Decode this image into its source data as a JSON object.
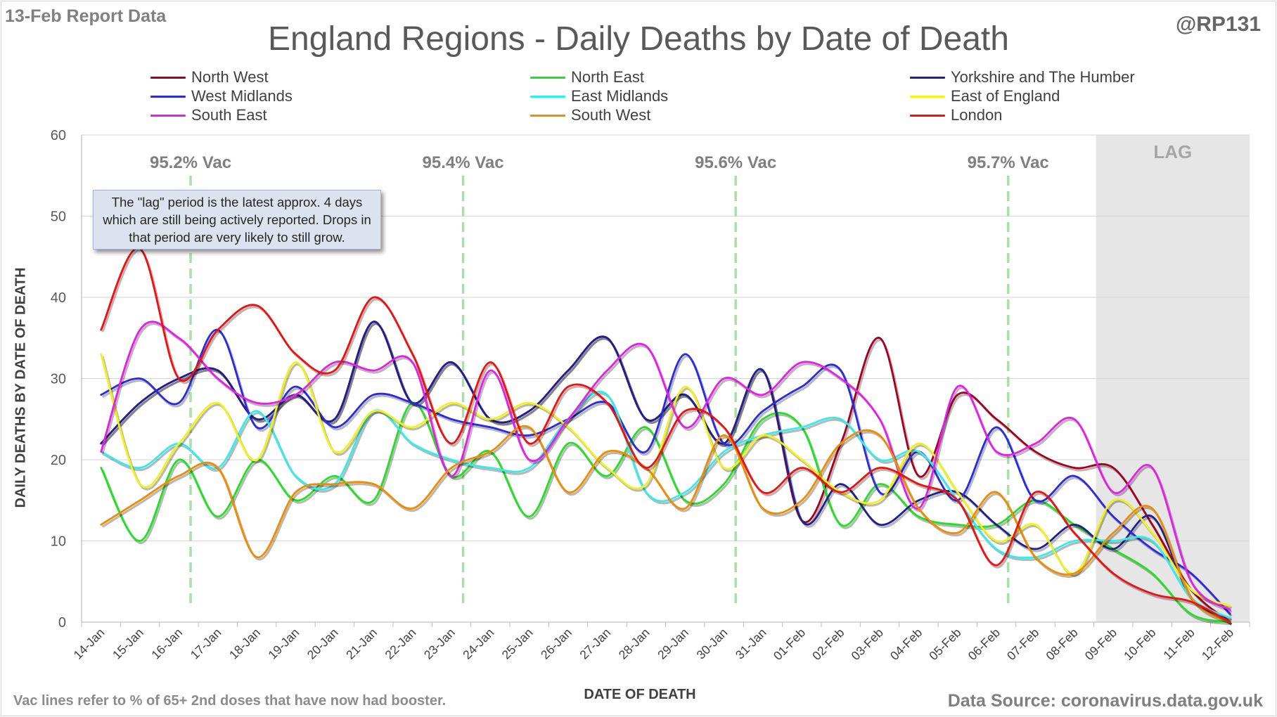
{
  "header": {
    "report_label": "13-Feb Report Data",
    "handle": "@RP131"
  },
  "footer": {
    "note": "Vac lines refer to % of 65+ 2nd doses that have now had booster.",
    "source": "Data Source: coronavirus.data.gov.uk"
  },
  "annotation": {
    "lag_note": "The \"lag\" period is the latest approx. 4 days which are still being actively reported. Drops in that period are very likely to still grow."
  },
  "colors": {
    "gridline": "#d9d9d9",
    "axis": "#bfbfbf",
    "vac_line": "#a9e0a9",
    "lag_band": "#e6e6e6"
  },
  "chart_data": {
    "type": "line",
    "title": "England Regions - Daily Deaths by Date of Death",
    "xlabel": "DATE OF DEATH",
    "ylabel": "DAILY DEATHS BY DATE OF DEATH",
    "ylim": [
      0,
      60
    ],
    "yticks": [
      0,
      10,
      20,
      30,
      40,
      50,
      60
    ],
    "grid": true,
    "legend_position": "top",
    "smoothed": true,
    "x": [
      "14-Jan",
      "15-Jan",
      "16-Jan",
      "17-Jan",
      "18-Jan",
      "19-Jan",
      "20-Jan",
      "21-Jan",
      "22-Jan",
      "23-Jan",
      "24-Jan",
      "25-Jan",
      "26-Jan",
      "27-Jan",
      "28-Jan",
      "29-Jan",
      "30-Jan",
      "31-Jan",
      "01-Feb",
      "02-Feb",
      "03-Feb",
      "04-Feb",
      "05-Feb",
      "06-Feb",
      "07-Feb",
      "08-Feb",
      "09-Feb",
      "10-Feb",
      "11-Feb",
      "12-Feb"
    ],
    "lag_label": "LAG",
    "lag_start": "09-Feb",
    "vac_markers": [
      {
        "label": "95.2% Vac",
        "after": "16-Jan"
      },
      {
        "label": "95.4% Vac",
        "after": "23-Jan"
      },
      {
        "label": "95.6% Vac",
        "after": "30-Jan"
      },
      {
        "label": "95.7% Vac",
        "after": "06-Feb"
      }
    ],
    "series": [
      {
        "name": "North West",
        "color": "#a50021",
        "values": [
          22,
          27,
          30,
          31,
          25,
          28,
          25,
          37,
          27,
          32,
          25,
          26,
          31,
          35,
          25,
          28,
          22,
          31,
          12.5,
          22,
          35,
          18,
          28,
          25,
          21,
          19,
          19,
          12,
          4,
          0
        ]
      },
      {
        "name": "North East",
        "color": "#22e022",
        "values": [
          19,
          10,
          20,
          13,
          20,
          15,
          18,
          15,
          27,
          18,
          21,
          13,
          22,
          18,
          24,
          15,
          17,
          25,
          24,
          12,
          17,
          13,
          12,
          12,
          15,
          12,
          9,
          6,
          1,
          0
        ]
      },
      {
        "name": "Yorkshire and The Humber",
        "color": "#1f1f8f",
        "values": [
          22,
          27,
          30,
          31,
          25,
          28,
          25,
          37,
          27,
          32,
          25,
          26,
          31,
          35,
          25,
          28,
          22,
          31,
          12.5,
          17,
          12,
          15,
          16,
          12,
          9,
          12,
          9,
          13,
          3,
          0.5
        ]
      },
      {
        "name": "West Midlands",
        "color": "#2a2ae0",
        "values": [
          28,
          30,
          27,
          36,
          24,
          29,
          24,
          28,
          27,
          25,
          24,
          23,
          25,
          27,
          21,
          33,
          22,
          26,
          29,
          31,
          16,
          21,
          15,
          24,
          15,
          18,
          13,
          9,
          6,
          1
        ]
      },
      {
        "name": "East Midlands",
        "color": "#33eded",
        "values": [
          21,
          19,
          22,
          19,
          26,
          18,
          17,
          26,
          22,
          20,
          19,
          19,
          25,
          28,
          16,
          16,
          21,
          23,
          24,
          25,
          20,
          21,
          15,
          9,
          8,
          10,
          10,
          10,
          3,
          0.5
        ]
      },
      {
        "name": "East of England",
        "color": "#f2f216",
        "values": [
          33,
          17,
          22,
          27,
          20,
          32,
          21,
          26,
          24,
          27,
          25,
          27,
          24,
          19,
          17,
          29,
          19,
          23,
          20,
          16,
          15,
          22,
          16,
          10,
          12,
          6,
          15,
          11,
          4,
          2
        ]
      },
      {
        "name": "South East",
        "color": "#e81ee8",
        "values": [
          21,
          36,
          35,
          30,
          27,
          28,
          32,
          31,
          32,
          18,
          31,
          20,
          25,
          31,
          34,
          24,
          30,
          28,
          32,
          30,
          25,
          14,
          29,
          21,
          22,
          25,
          16,
          19,
          5,
          1.5
        ]
      },
      {
        "name": "South West",
        "color": "#f08c00",
        "values": [
          12,
          15,
          18,
          19,
          8,
          16,
          17,
          17,
          14,
          19,
          21,
          24,
          16,
          21,
          19,
          14,
          23,
          14,
          15,
          22,
          23,
          14,
          11,
          16,
          8,
          6,
          11,
          14,
          3,
          0
        ]
      },
      {
        "name": "London",
        "color": "#f01010",
        "values": [
          36,
          46,
          30,
          36,
          39,
          33,
          31,
          40,
          33,
          22,
          32,
          22,
          29,
          27,
          19,
          26,
          24,
          16,
          19,
          16,
          19,
          17,
          15,
          7,
          16,
          11,
          6,
          3.5,
          2.5,
          0
        ]
      }
    ]
  }
}
